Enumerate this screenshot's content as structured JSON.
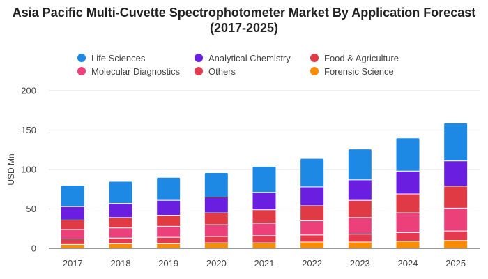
{
  "chart_data": {
    "type": "bar",
    "stacked": true,
    "title": "Asia Pacific Multi-Cuvette Spectrophotometer Market By Application Forecast (2017-2025)",
    "xlabel": "",
    "ylabel": "USD Mn",
    "ylim": [
      0,
      200
    ],
    "yticks": [
      "0",
      "50",
      "100",
      "150",
      "200"
    ],
    "grid": true,
    "legend_position": "top",
    "categories": [
      "2017",
      "2018",
      "2019",
      "2020",
      "2021",
      "2022",
      "2023",
      "2024",
      "2025"
    ],
    "series": [
      {
        "name": "Forensic Science",
        "color": "#fb8c00",
        "values": [
          5,
          6,
          6,
          7,
          7,
          8,
          8,
          9,
          10
        ]
      },
      {
        "name": "Others",
        "color": "#e53950",
        "values": [
          7,
          7,
          8,
          8,
          9,
          9,
          10,
          11,
          12
        ]
      },
      {
        "name": "Molecular Diagnostics",
        "color": "#ec407a",
        "values": [
          12,
          13,
          14,
          15,
          16,
          18,
          21,
          25,
          29
        ]
      },
      {
        "name": "Food & Agriculture",
        "color": "#e03a45",
        "values": [
          12,
          13,
          14,
          15,
          17,
          19,
          22,
          24,
          28
        ]
      },
      {
        "name": "Analytical Chemistry",
        "color": "#6a1ee0",
        "values": [
          17,
          18,
          19,
          20,
          22,
          24,
          26,
          29,
          32
        ]
      },
      {
        "name": "Life Sciences",
        "color": "#1e88e5",
        "values": [
          27,
          28,
          29,
          31,
          33,
          36,
          39,
          42,
          48
        ]
      }
    ]
  }
}
